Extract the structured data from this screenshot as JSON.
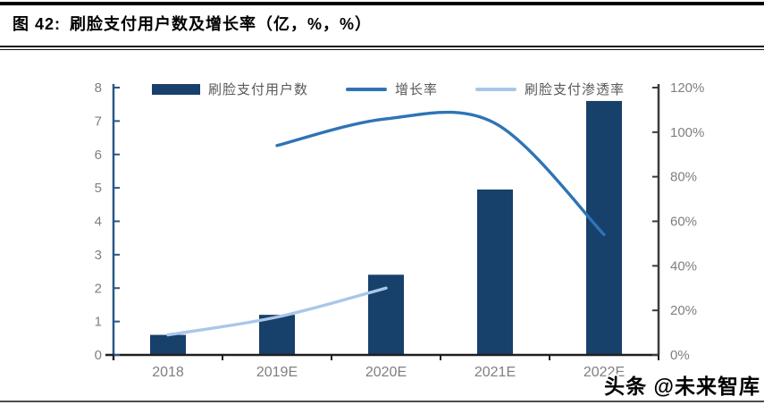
{
  "header": {
    "figure_label": "图 42:",
    "title": "刷脸支付用户数及增长率（亿，%，%）"
  },
  "watermark": {
    "text": "头条 @未来智库"
  },
  "chart_data": {
    "type": "bar+line combo",
    "title": "刷脸支付用户数及增长率（亿，%，%）",
    "categories": [
      "2018",
      "2019E",
      "2020E",
      "2021E",
      "2022E"
    ],
    "series": [
      {
        "name": "刷脸支付用户数",
        "type": "bar",
        "axis": "left",
        "unit": "亿",
        "color": "#17406B",
        "values": [
          0.6,
          1.2,
          2.4,
          4.95,
          7.6
        ]
      },
      {
        "name": "增长率",
        "type": "line",
        "axis": "right",
        "unit": "%",
        "color": "#2E74B5",
        "values": [
          null,
          94,
          106,
          104,
          54
        ]
      },
      {
        "name": "刷脸支付渗透率",
        "type": "line",
        "axis": "right",
        "unit": "%",
        "color": "#A9C7E9",
        "values": [
          9,
          17,
          30,
          null,
          null
        ]
      }
    ],
    "left_axis": {
      "min": 0,
      "max": 8,
      "step": 1,
      "labels": [
        "0",
        "1",
        "2",
        "3",
        "4",
        "5",
        "6",
        "7",
        "8"
      ],
      "color": "#2A5784"
    },
    "right_axis": {
      "min": 0,
      "max": 120,
      "step": 20,
      "labels": [
        "0%",
        "20%",
        "40%",
        "60%",
        "80%",
        "100%",
        "120%"
      ],
      "color": "#3B3B3B"
    },
    "legend_position": "top",
    "grid": false,
    "label_color": "#7F7F7F",
    "legend_text_color": "#595959"
  }
}
